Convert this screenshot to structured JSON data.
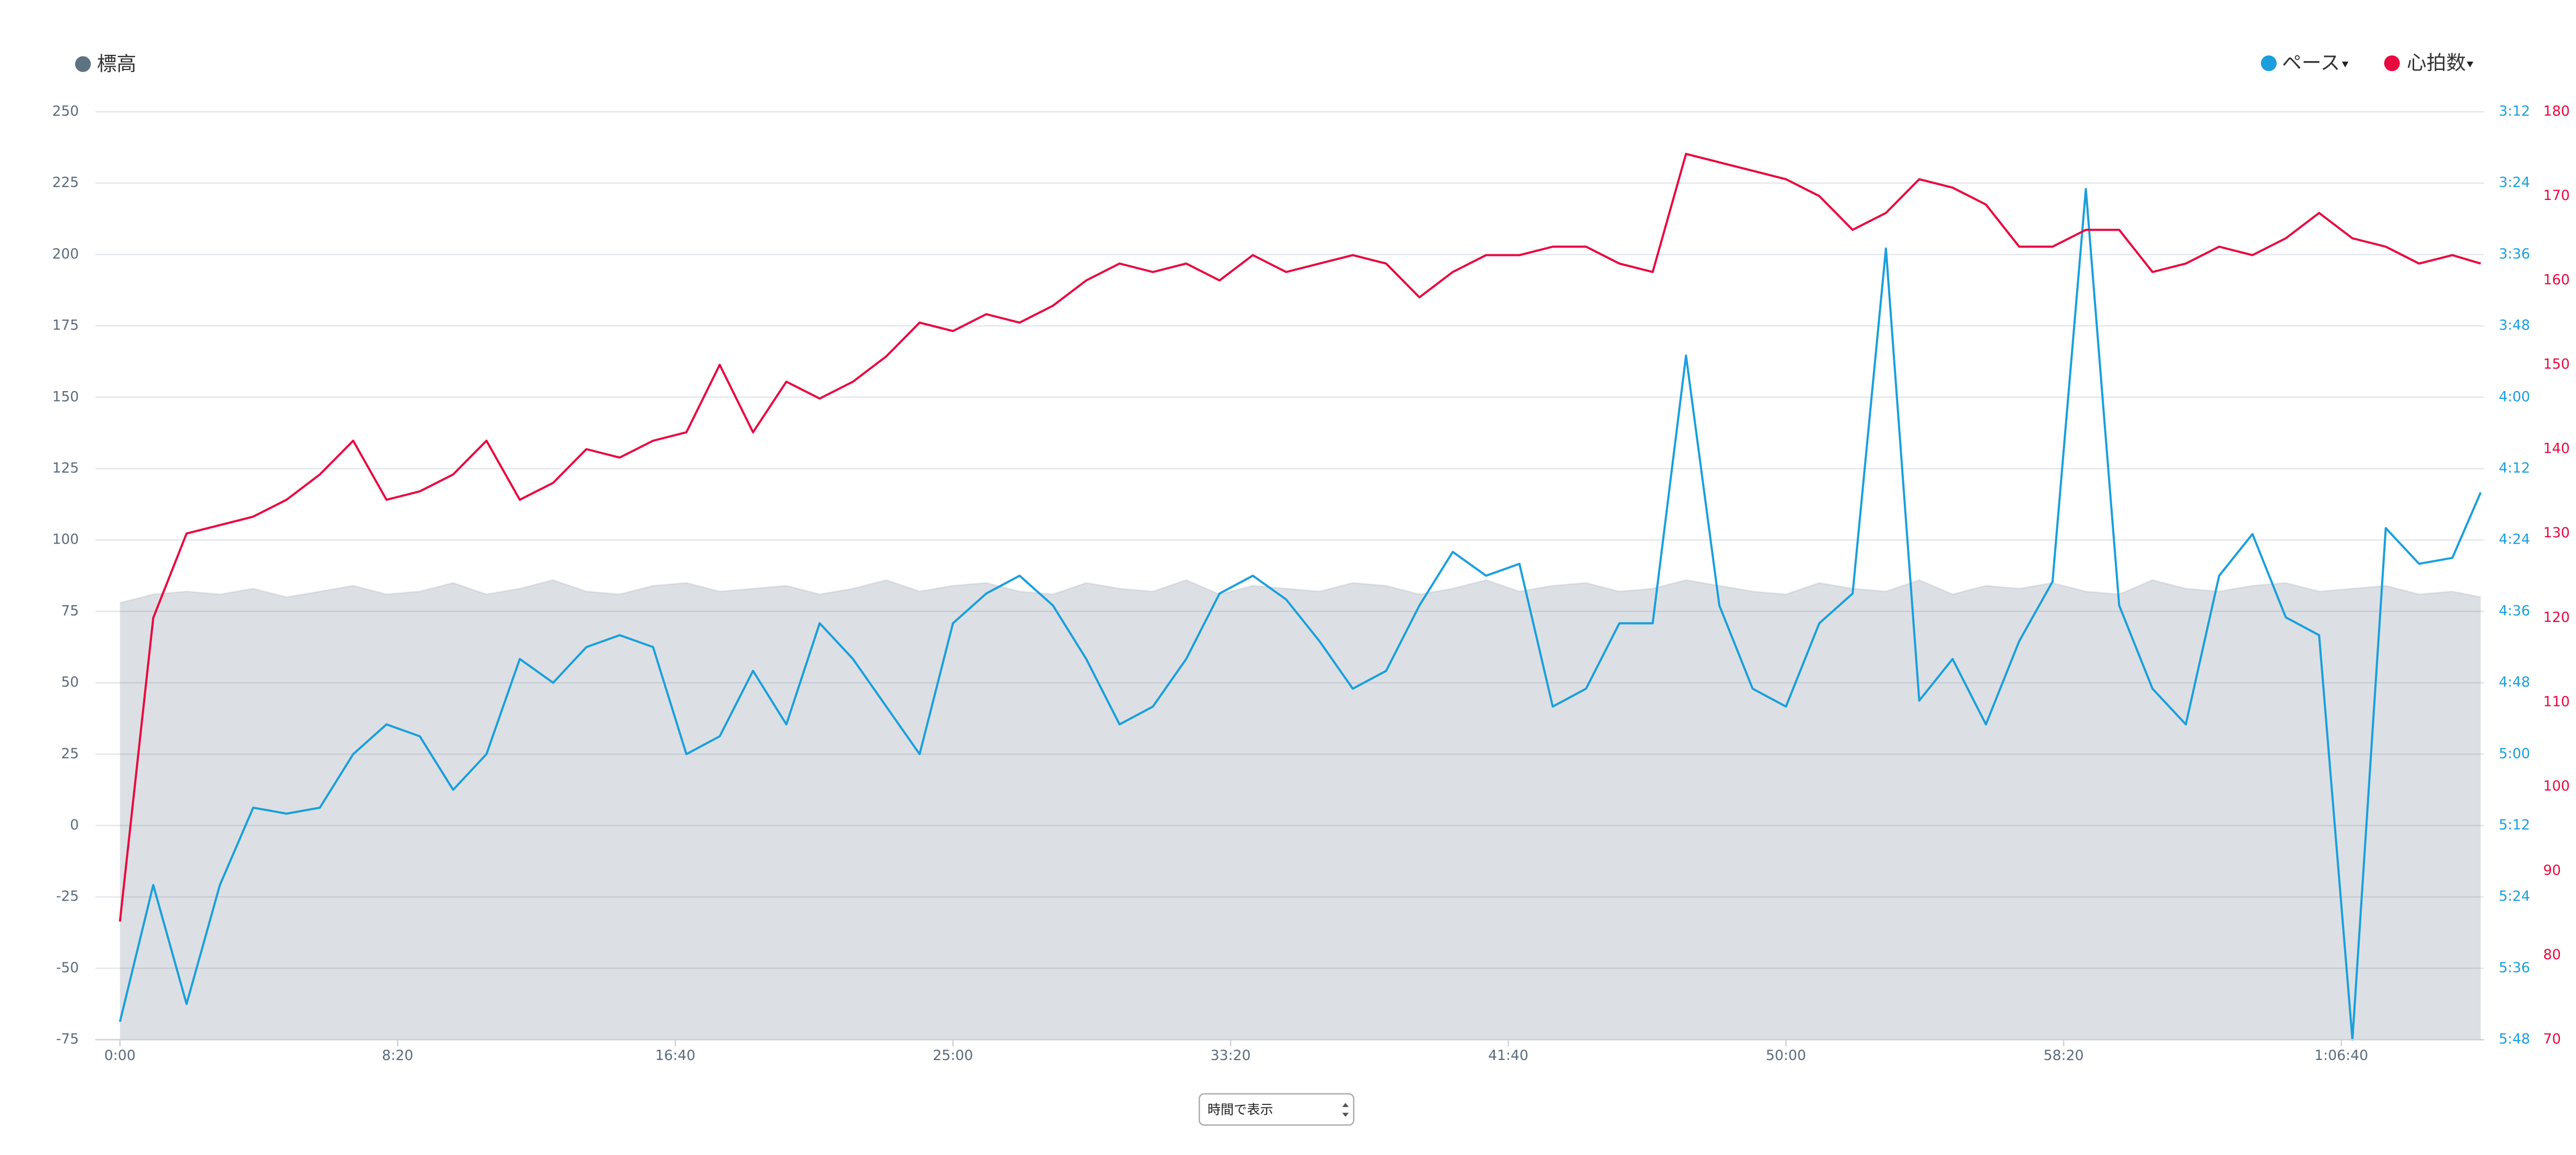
{
  "chart_data": {
    "type": "line",
    "x": [
      0,
      60,
      120,
      180,
      240,
      300,
      360,
      420,
      480,
      540,
      600,
      660,
      720,
      780,
      840,
      900,
      960,
      1020,
      1080,
      1140,
      1200,
      1260,
      1320,
      1380,
      1440,
      1500,
      1560,
      1620,
      1680,
      1740,
      1800,
      1860,
      1920,
      1980,
      2040,
      2100,
      2160,
      2220,
      2280,
      2340,
      2400,
      2460,
      2520,
      2580,
      2640,
      2700,
      2760,
      2820,
      2880,
      2940,
      3000,
      3060,
      3120,
      3180,
      3240,
      3300,
      3360,
      3420,
      3480,
      3540,
      3600,
      3660,
      3720,
      3780,
      3840,
      3900,
      3960,
      4020,
      4080,
      4140,
      4200,
      4251
    ],
    "xlim": [
      0,
      4251
    ],
    "xticks": [
      {
        "value": 0,
        "label": "0:00"
      },
      {
        "value": 500,
        "label": "8:20"
      },
      {
        "value": 1000,
        "label": "16:40"
      },
      {
        "value": 1500,
        "label": "25:00"
      },
      {
        "value": 2000,
        "label": "33:20"
      },
      {
        "value": 2500,
        "label": "41:40"
      },
      {
        "value": 3000,
        "label": "50:00"
      },
      {
        "value": 3500,
        "label": "58:20"
      },
      {
        "value": 4000,
        "label": "1:06:40"
      }
    ],
    "ylim": [
      -75,
      250
    ],
    "yticks": [
      -75,
      -50,
      -25,
      0,
      25,
      50,
      75,
      100,
      125,
      150,
      175,
      200,
      225,
      250
    ],
    "y2lim": [
      348,
      192
    ],
    "y2ticks": [
      {
        "value": 192,
        "label": "3:12"
      },
      {
        "value": 204,
        "label": "3:24"
      },
      {
        "value": 216,
        "label": "3:36"
      },
      {
        "value": 228,
        "label": "3:48"
      },
      {
        "value": 240,
        "label": "4:00"
      },
      {
        "value": 252,
        "label": "4:12"
      },
      {
        "value": 264,
        "label": "4:24"
      },
      {
        "value": 276,
        "label": "4:36"
      },
      {
        "value": 288,
        "label": "4:48"
      },
      {
        "value": 300,
        "label": "5:00"
      },
      {
        "value": 312,
        "label": "5:12"
      },
      {
        "value": 324,
        "label": "5:24"
      },
      {
        "value": 336,
        "label": "5:36"
      },
      {
        "value": 348,
        "label": "5:48"
      }
    ],
    "y3lim": [
      70,
      180
    ],
    "y3ticks": [
      70,
      80,
      90,
      100,
      110,
      120,
      130,
      140,
      150,
      160,
      170,
      180
    ],
    "grid": true,
    "series": [
      {
        "name": "標高",
        "type": "area",
        "color": "#5e7382",
        "values": [
          78,
          81,
          82,
          81,
          83,
          80,
          82,
          84,
          81,
          82,
          85,
          81,
          83,
          86,
          82,
          81,
          84,
          85,
          82,
          83,
          84,
          81,
          83,
          86,
          82,
          84,
          85,
          82,
          81,
          85,
          83,
          82,
          86,
          81,
          84,
          83,
          82,
          85,
          84,
          81,
          83,
          86,
          82,
          84,
          85,
          82,
          83,
          86,
          84,
          82,
          81,
          85,
          83,
          82,
          86,
          81,
          84,
          83,
          85,
          82,
          81,
          86,
          83,
          82,
          84,
          85,
          82,
          83,
          84,
          81,
          82,
          80
        ]
      },
      {
        "name": "ペース",
        "axis": "y2",
        "color": "#1a9fdc",
        "values": [
          345,
          322,
          342,
          322,
          309,
          310,
          309,
          300,
          295,
          297,
          306,
          300,
          284,
          288,
          282,
          280,
          282,
          300,
          297,
          286,
          295,
          278,
          284,
          292,
          300,
          278,
          273,
          270,
          275,
          284,
          295,
          292,
          284,
          273,
          270,
          274,
          281,
          289,
          286,
          275,
          266,
          270,
          268,
          292,
          289,
          278,
          278,
          233,
          275,
          289,
          292,
          278,
          273,
          215,
          291,
          284,
          295,
          281,
          271,
          205,
          275,
          289,
          295,
          270,
          263,
          277,
          280,
          348,
          262,
          268,
          267,
          256
        ]
      },
      {
        "name": "心拍数",
        "axis": "y3",
        "color": "#e8093f",
        "values": [
          84,
          120,
          130,
          131,
          132,
          134,
          137,
          141,
          134,
          135,
          137,
          141,
          134,
          136,
          140,
          139,
          141,
          142,
          150,
          142,
          148,
          146,
          148,
          151,
          155,
          154,
          156,
          155,
          157,
          160,
          162,
          161,
          162,
          160,
          163,
          161,
          162,
          163,
          162,
          158,
          161,
          163,
          163,
          164,
          164,
          162,
          161,
          175,
          174,
          173,
          172,
          170,
          166,
          168,
          172,
          171,
          169,
          164,
          164,
          166,
          166,
          161,
          162,
          164,
          163,
          165,
          168,
          165,
          164,
          162,
          163,
          162
        ]
      }
    ],
    "control": {
      "label": "時間で表示"
    }
  }
}
